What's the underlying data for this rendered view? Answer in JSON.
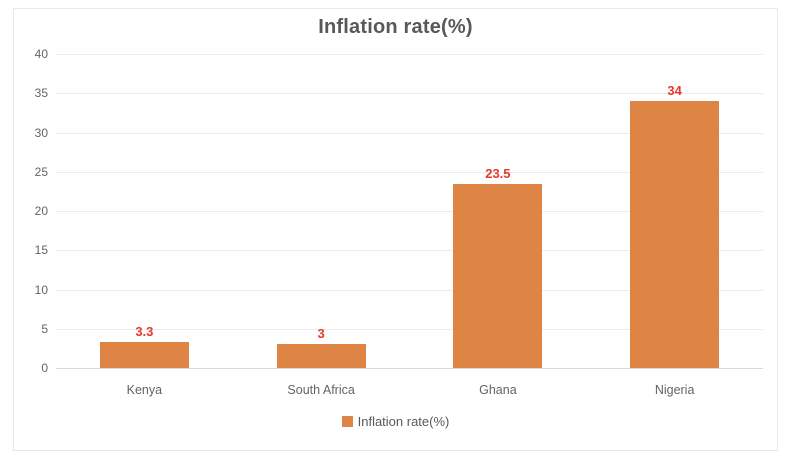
{
  "chart_data": {
    "type": "bar",
    "title": "Inflation rate(%)",
    "categories": [
      "Kenya",
      "South Africa",
      "Ghana",
      "Nigeria"
    ],
    "values": [
      3.3,
      3,
      23.5,
      34
    ],
    "data_labels": [
      "3.3",
      "3",
      "23.5",
      "34"
    ],
    "xlabel": "",
    "ylabel": "",
    "ylim": [
      0,
      40
    ],
    "yticks": [
      0,
      5,
      10,
      15,
      20,
      25,
      30,
      35,
      40
    ],
    "grid": true,
    "legend": {
      "label": "Inflation rate(%)",
      "position": "bottom"
    },
    "colors": {
      "bar": "#de8545",
      "data_label": "#e8382b",
      "title_text": "#595959",
      "axis_text": "#646464",
      "gridline": "#ececec",
      "axis_line": "#d9d9d9",
      "frame_border": "#e9e9e9",
      "background": "#ffffff"
    }
  }
}
